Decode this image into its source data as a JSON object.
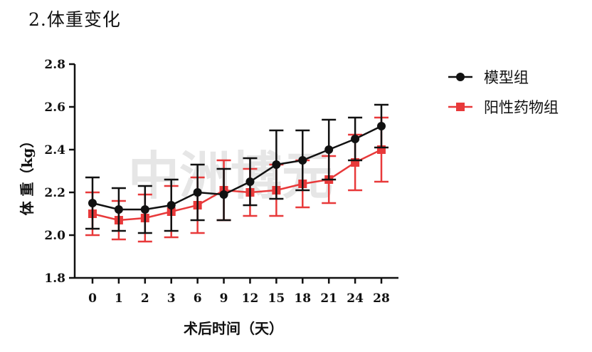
{
  "heading": "2.体重变化",
  "watermark": "中洲博元",
  "colors": {
    "model": "#111111",
    "positive": "#e8393a",
    "axis": "#111111"
  },
  "chart_data": {
    "type": "line",
    "title": "",
    "xlabel": "术后时间（天）",
    "ylabel": "体 重（kg）",
    "categories": [
      "0",
      "1",
      "2",
      "3",
      "6",
      "9",
      "12",
      "15",
      "18",
      "21",
      "24",
      "28"
    ],
    "ylim": [
      1.8,
      2.8
    ],
    "yticks": [
      "1.8",
      "2.0",
      "2.2",
      "2.4",
      "2.6",
      "2.8"
    ],
    "grid": false,
    "legend_position": "top-right",
    "series": [
      {
        "name": "模型组",
        "marker": "circle",
        "color": "#111111",
        "values": [
          2.15,
          2.12,
          2.12,
          2.14,
          2.2,
          2.19,
          2.25,
          2.33,
          2.35,
          2.4,
          2.45,
          2.51
        ],
        "errors": [
          0.12,
          0.1,
          0.11,
          0.12,
          0.13,
          0.12,
          0.11,
          0.16,
          0.14,
          0.14,
          0.1,
          0.1
        ]
      },
      {
        "name": "阳性药物组",
        "marker": "square",
        "color": "#e8393a",
        "values": [
          2.1,
          2.07,
          2.08,
          2.11,
          2.14,
          2.21,
          2.2,
          2.21,
          2.24,
          2.26,
          2.34,
          2.4
        ],
        "errors": [
          0.1,
          0.09,
          0.11,
          0.12,
          0.13,
          0.14,
          0.11,
          0.12,
          0.11,
          0.11,
          0.13,
          0.15
        ]
      }
    ]
  }
}
